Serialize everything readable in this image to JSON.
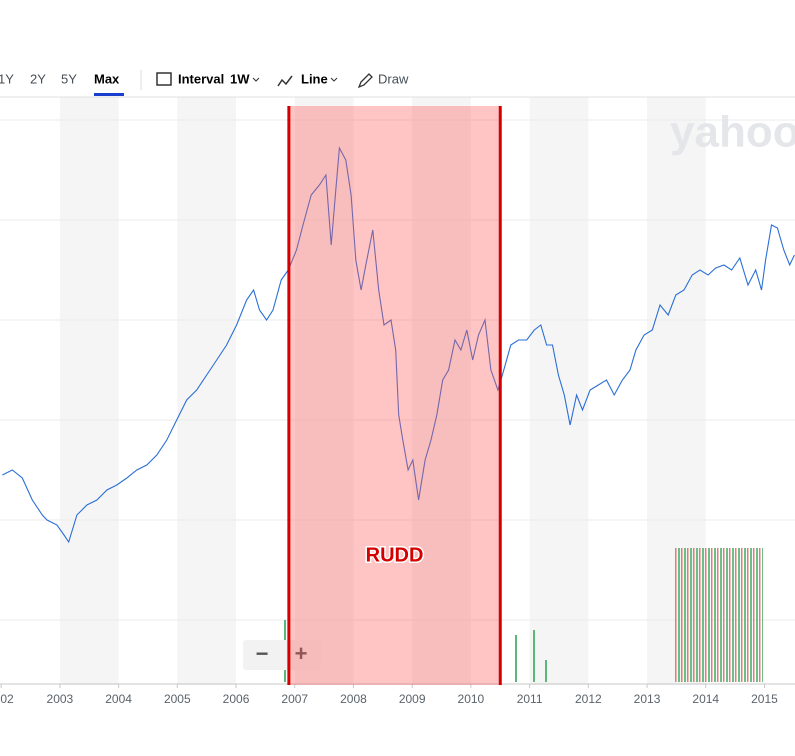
{
  "toolbar": {
    "ranges": [
      "1Y",
      "2Y",
      "5Y",
      "Max"
    ],
    "interval_label": "Interval",
    "interval": "1W",
    "line": "Line",
    "draw": "Draw"
  },
  "watermark": "yahoo",
  "zoom": [
    "−",
    "+"
  ],
  "chart_data": {
    "type": "line",
    "x": [
      2002.02,
      2002.19,
      2002.36,
      2002.53,
      2002.7,
      2002.78,
      2002.95,
      2003.07,
      2003.15,
      2003.29,
      2003.46,
      2003.63,
      2003.8,
      2003.97,
      2004.14,
      2004.31,
      2004.48,
      2004.65,
      2004.82,
      2004.99,
      2005.16,
      2005.33,
      2005.5,
      2005.67,
      2005.84,
      2006.01,
      2006.18,
      2006.3,
      2006.4,
      2006.52,
      2006.63,
      2006.77,
      2006.89,
      2007.03,
      2007.14,
      2007.28,
      2007.42,
      2007.53,
      2007.62,
      2007.7,
      2007.76,
      2007.87,
      2007.96,
      2008.04,
      2008.13,
      2008.21,
      2008.33,
      2008.43,
      2008.52,
      2008.64,
      2008.72,
      2008.77,
      2008.84,
      2008.93,
      2009.01,
      2009.11,
      2009.22,
      2009.32,
      2009.42,
      2009.52,
      2009.62,
      2009.73,
      2009.83,
      2009.93,
      2010.03,
      2010.13,
      2010.24,
      2010.34,
      2010.46,
      2010.56,
      2010.68,
      2010.81,
      2010.95,
      2011.08,
      2011.19,
      2011.29,
      2011.39,
      2011.49,
      2011.59,
      2011.69,
      2011.8,
      2011.9,
      2012.03,
      2012.17,
      2012.31,
      2012.44,
      2012.58,
      2012.71,
      2012.81,
      2012.95,
      2013.09,
      2013.22,
      2013.36,
      2013.49,
      2013.63,
      2013.77,
      2013.9,
      2014.04,
      2014.17,
      2014.31,
      2014.44,
      2014.58,
      2014.72,
      2014.85,
      2014.95,
      2015.02,
      2015.12,
      2015.22,
      2015.33,
      2015.43,
      2015.51
    ],
    "series": [
      {
        "color": "#2a6fd6",
        "values": [
          3450,
          3500,
          3420,
          3200,
          3050,
          3000,
          2950,
          2850,
          2780,
          3050,
          3150,
          3200,
          3300,
          3350,
          3420,
          3500,
          3550,
          3650,
          3800,
          4000,
          4200,
          4300,
          4450,
          4600,
          4750,
          4950,
          5200,
          5300,
          5100,
          5000,
          5100,
          5400,
          5500,
          5700,
          5950,
          6250,
          6350,
          6450,
          5750,
          6300,
          6720,
          6600,
          6250,
          5600,
          5300,
          5550,
          5900,
          5300,
          4950,
          5000,
          4700,
          4050,
          3800,
          3500,
          3600,
          3200,
          3600,
          3800,
          4050,
          4400,
          4500,
          4800,
          4700,
          4900,
          4600,
          4850,
          5000,
          4500,
          4300,
          4500,
          4750,
          4800,
          4800,
          4900,
          4950,
          4750,
          4750,
          4450,
          4250,
          3950,
          4250,
          4100,
          4300,
          4350,
          4400,
          4250,
          4400,
          4500,
          4700,
          4850,
          4900,
          5150,
          5050,
          5250,
          5300,
          5450,
          5500,
          5450,
          5520,
          5550,
          5500,
          5620,
          5350,
          5500,
          5300,
          5600,
          5950,
          5920,
          5700,
          5550,
          5650
        ]
      }
    ],
    "xlim": [
      2001.98,
      2015.52
    ],
    "ylim": [
      1350,
      7230
    ],
    "xticks": [
      {
        "value": 2002,
        "label": "02"
      },
      2003,
      2004,
      2005,
      2006,
      2007,
      2008,
      2009,
      2010,
      2011,
      2012,
      2013,
      2014,
      2015
    ],
    "highlight": {
      "label": "RUDD",
      "x": [
        2006.9,
        2010.5
      ],
      "color": "#d40000"
    }
  }
}
